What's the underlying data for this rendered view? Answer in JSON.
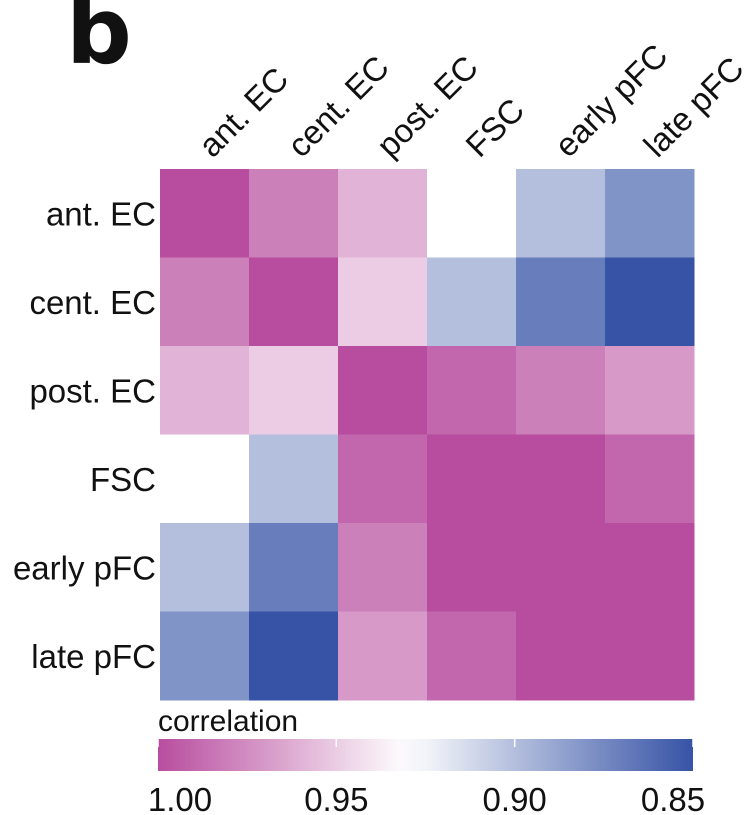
{
  "panel_label": "b",
  "chart_data": {
    "type": "heatmap",
    "title": "",
    "labels": [
      "ant. EC",
      "cent. EC",
      "post. EC",
      "FSC",
      "early pFC",
      "late pFC"
    ],
    "matrix": [
      [
        1.0,
        0.98,
        0.96,
        0.93,
        0.9,
        0.88
      ],
      [
        0.98,
        1.0,
        0.95,
        0.9,
        0.87,
        0.85
      ],
      [
        0.96,
        0.95,
        1.0,
        0.99,
        0.98,
        0.97
      ],
      [
        0.93,
        0.9,
        0.99,
        1.0,
        1.0,
        0.99
      ],
      [
        0.9,
        0.87,
        0.98,
        1.0,
        1.0,
        1.0
      ],
      [
        0.88,
        0.85,
        0.97,
        0.99,
        1.0,
        1.0
      ]
    ],
    "colorbar": {
      "title": "correlation",
      "min": 0.85,
      "max": 1.0,
      "direction": "descending",
      "tick_values": [
        1.0,
        0.95,
        0.9,
        0.85
      ],
      "tick_labels": [
        "1.00",
        "0.95",
        "0.90",
        "0.85"
      ],
      "colors": {
        "high": "#b84d9f",
        "mid": "#ffffff",
        "low": "#3653a6"
      },
      "mid_value": 0.93
    }
  }
}
